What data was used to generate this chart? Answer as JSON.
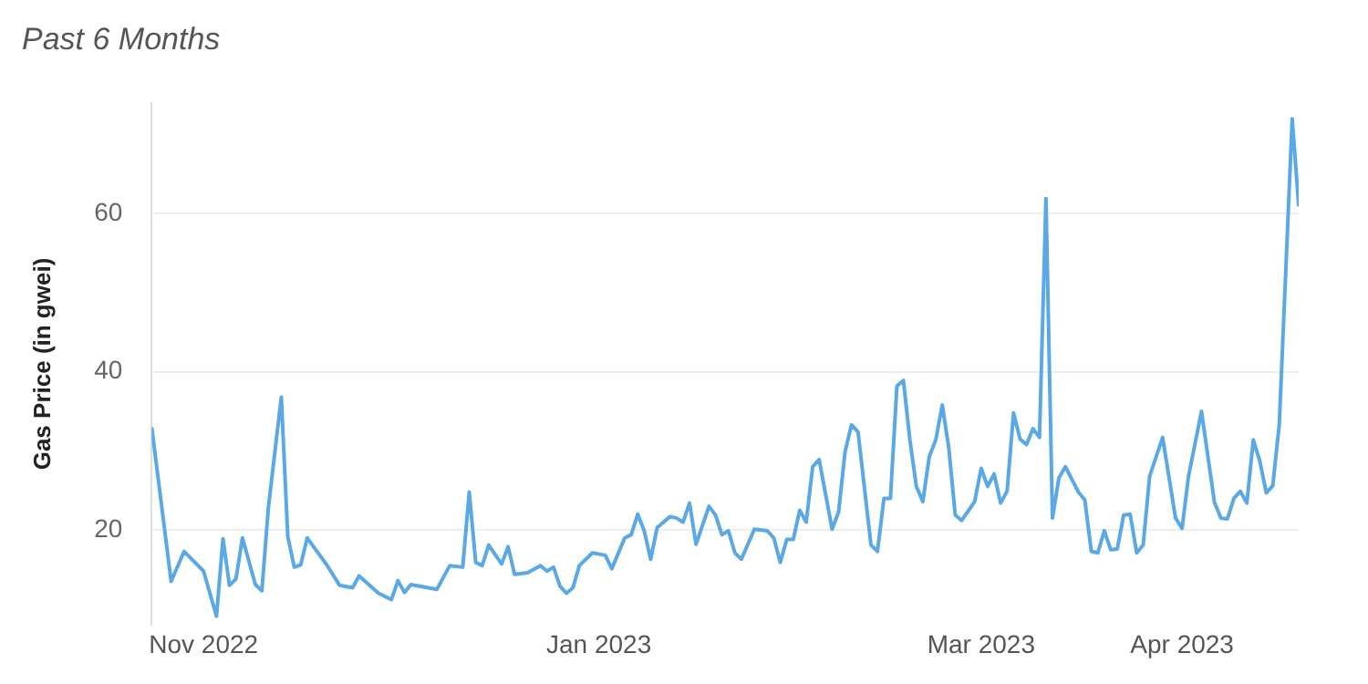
{
  "chart_data": {
    "type": "line",
    "title": "Past 6 Months",
    "ylabel": "Gas Price (in gwei)",
    "x": [
      "2022-10-24",
      "2022-10-27",
      "2022-10-29",
      "2022-11-01",
      "2022-11-03",
      "2022-11-04",
      "2022-11-05",
      "2022-11-06",
      "2022-11-07",
      "2022-11-09",
      "2022-11-10",
      "2022-11-11",
      "2022-11-13",
      "2022-11-14",
      "2022-11-15",
      "2022-11-16",
      "2022-11-17",
      "2022-11-20",
      "2022-11-22",
      "2022-11-24",
      "2022-11-25",
      "2022-11-28",
      "2022-11-30",
      "2022-12-01",
      "2022-12-02",
      "2022-12-03",
      "2022-12-07",
      "2022-12-09",
      "2022-12-11",
      "2022-12-12",
      "2022-12-13",
      "2022-12-14",
      "2022-12-15",
      "2022-12-17",
      "2022-12-18",
      "2022-12-19",
      "2022-12-21",
      "2022-12-23",
      "2022-12-24",
      "2022-12-25",
      "2022-12-26",
      "2022-12-27",
      "2022-12-28",
      "2022-12-29",
      "2022-12-31",
      "2023-01-02",
      "2023-01-03",
      "2023-01-05",
      "2023-01-06",
      "2023-01-07",
      "2023-01-08",
      "2023-01-09",
      "2023-01-10",
      "2023-01-12",
      "2023-01-13",
      "2023-01-14",
      "2023-01-15",
      "2023-01-16",
      "2023-01-18",
      "2023-01-19",
      "2023-01-20",
      "2023-01-21",
      "2023-01-22",
      "2023-01-23",
      "2023-01-25",
      "2023-01-27",
      "2023-01-28",
      "2023-01-29",
      "2023-01-30",
      "2023-01-31",
      "2023-02-01",
      "2023-02-02",
      "2023-02-03",
      "2023-02-04",
      "2023-02-05",
      "2023-02-06",
      "2023-02-07",
      "2023-02-08",
      "2023-02-09",
      "2023-02-10",
      "2023-02-12",
      "2023-02-13",
      "2023-02-14",
      "2023-02-15",
      "2023-02-16",
      "2023-02-17",
      "2023-02-18",
      "2023-02-19",
      "2023-02-20",
      "2023-02-21",
      "2023-02-22",
      "2023-02-23",
      "2023-02-24",
      "2023-02-25",
      "2023-02-26",
      "2023-02-28",
      "2023-03-01",
      "2023-03-02",
      "2023-03-03",
      "2023-03-04",
      "2023-03-05",
      "2023-03-06",
      "2023-03-07",
      "2023-03-08",
      "2023-03-09",
      "2023-03-10",
      "2023-03-11",
      "2023-03-12",
      "2023-03-13",
      "2023-03-14",
      "2023-03-16",
      "2023-03-17",
      "2023-03-18",
      "2023-03-19",
      "2023-03-20",
      "2023-03-21",
      "2023-03-22",
      "2023-03-23",
      "2023-03-24",
      "2023-03-25",
      "2023-03-26",
      "2023-03-27",
      "2023-03-29",
      "2023-03-31",
      "2023-04-01",
      "2023-04-02",
      "2023-04-04",
      "2023-04-06",
      "2023-04-07",
      "2023-04-08",
      "2023-04-09",
      "2023-04-10",
      "2023-04-11",
      "2023-04-12",
      "2023-04-13",
      "2023-04-14",
      "2023-04-15",
      "2023-04-16",
      "2023-04-18",
      "2023-04-19"
    ],
    "series": [
      {
        "color": "#5aa9e6",
        "values": [
          33.0,
          13.5,
          17.3,
          14.8,
          9.1,
          18.9,
          13.0,
          13.8,
          19.0,
          13.1,
          12.3,
          22.8,
          36.8,
          19.2,
          15.3,
          15.6,
          19.0,
          15.6,
          13.0,
          12.7,
          14.2,
          12.0,
          11.2,
          13.6,
          12.1,
          13.1,
          12.5,
          15.5,
          15.3,
          24.8,
          15.9,
          15.5,
          18.1,
          15.7,
          17.9,
          14.4,
          14.6,
          15.5,
          14.8,
          15.3,
          12.9,
          12.0,
          12.7,
          15.5,
          17.1,
          16.8,
          15.1,
          19.0,
          19.4,
          22.0,
          19.9,
          16.3,
          20.3,
          21.7,
          21.5,
          21.0,
          23.4,
          18.2,
          23.0,
          21.9,
          19.4,
          19.9,
          17.1,
          16.3,
          20.1,
          19.9,
          19.0,
          15.9,
          18.8,
          18.8,
          22.5,
          21.0,
          28.0,
          28.9,
          24.5,
          20.1,
          22.3,
          29.9,
          33.3,
          32.4,
          18.1,
          17.3,
          24.0,
          24.0,
          38.2,
          38.9,
          31.4,
          25.5,
          23.6,
          29.3,
          31.4,
          35.8,
          30.4,
          21.9,
          21.2,
          23.6,
          27.8,
          25.5,
          27.1,
          23.4,
          24.9,
          34.8,
          31.5,
          30.8,
          32.8,
          31.7,
          61.9,
          21.5,
          26.6,
          28.0,
          24.8,
          23.8,
          17.3,
          17.1,
          19.9,
          17.5,
          17.6,
          21.9,
          22.0,
          17.1,
          18.1,
          26.8,
          31.7,
          21.5,
          20.2,
          26.8,
          35.0,
          23.5,
          21.5,
          21.4,
          24.0,
          24.9,
          23.4,
          31.4,
          28.7,
          24.7,
          25.6,
          33.3,
          72.0,
          60.9
        ]
      }
    ],
    "xlim": [
      "2022-10-24",
      "2023-04-19"
    ],
    "xticks": [
      {
        "value": "2022-11-01",
        "label": "Nov 2022"
      },
      {
        "value": "2023-01-01",
        "label": "Jan 2023"
      },
      {
        "value": "2023-03-01",
        "label": "Mar 2023"
      },
      {
        "value": "2023-04-01",
        "label": "Apr 2023"
      }
    ],
    "ylim": [
      8,
      74
    ],
    "yticks": [
      20,
      40,
      60
    ],
    "grid": "y",
    "legend": false,
    "marker": "none",
    "line_style": "solid"
  }
}
